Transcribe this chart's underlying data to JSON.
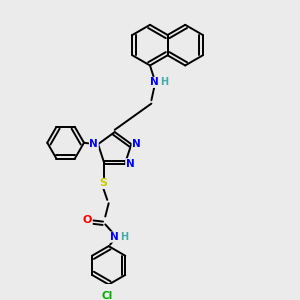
{
  "background_color": "#ebebeb",
  "bond_color": "#000000",
  "atom_colors": {
    "N": "#0000ff",
    "O": "#ff0000",
    "S": "#cccc00",
    "Cl": "#00aa00",
    "H_N": "#44aaaa",
    "C": "#000000"
  },
  "bond_lw": 1.4,
  "font_size": 7.5
}
